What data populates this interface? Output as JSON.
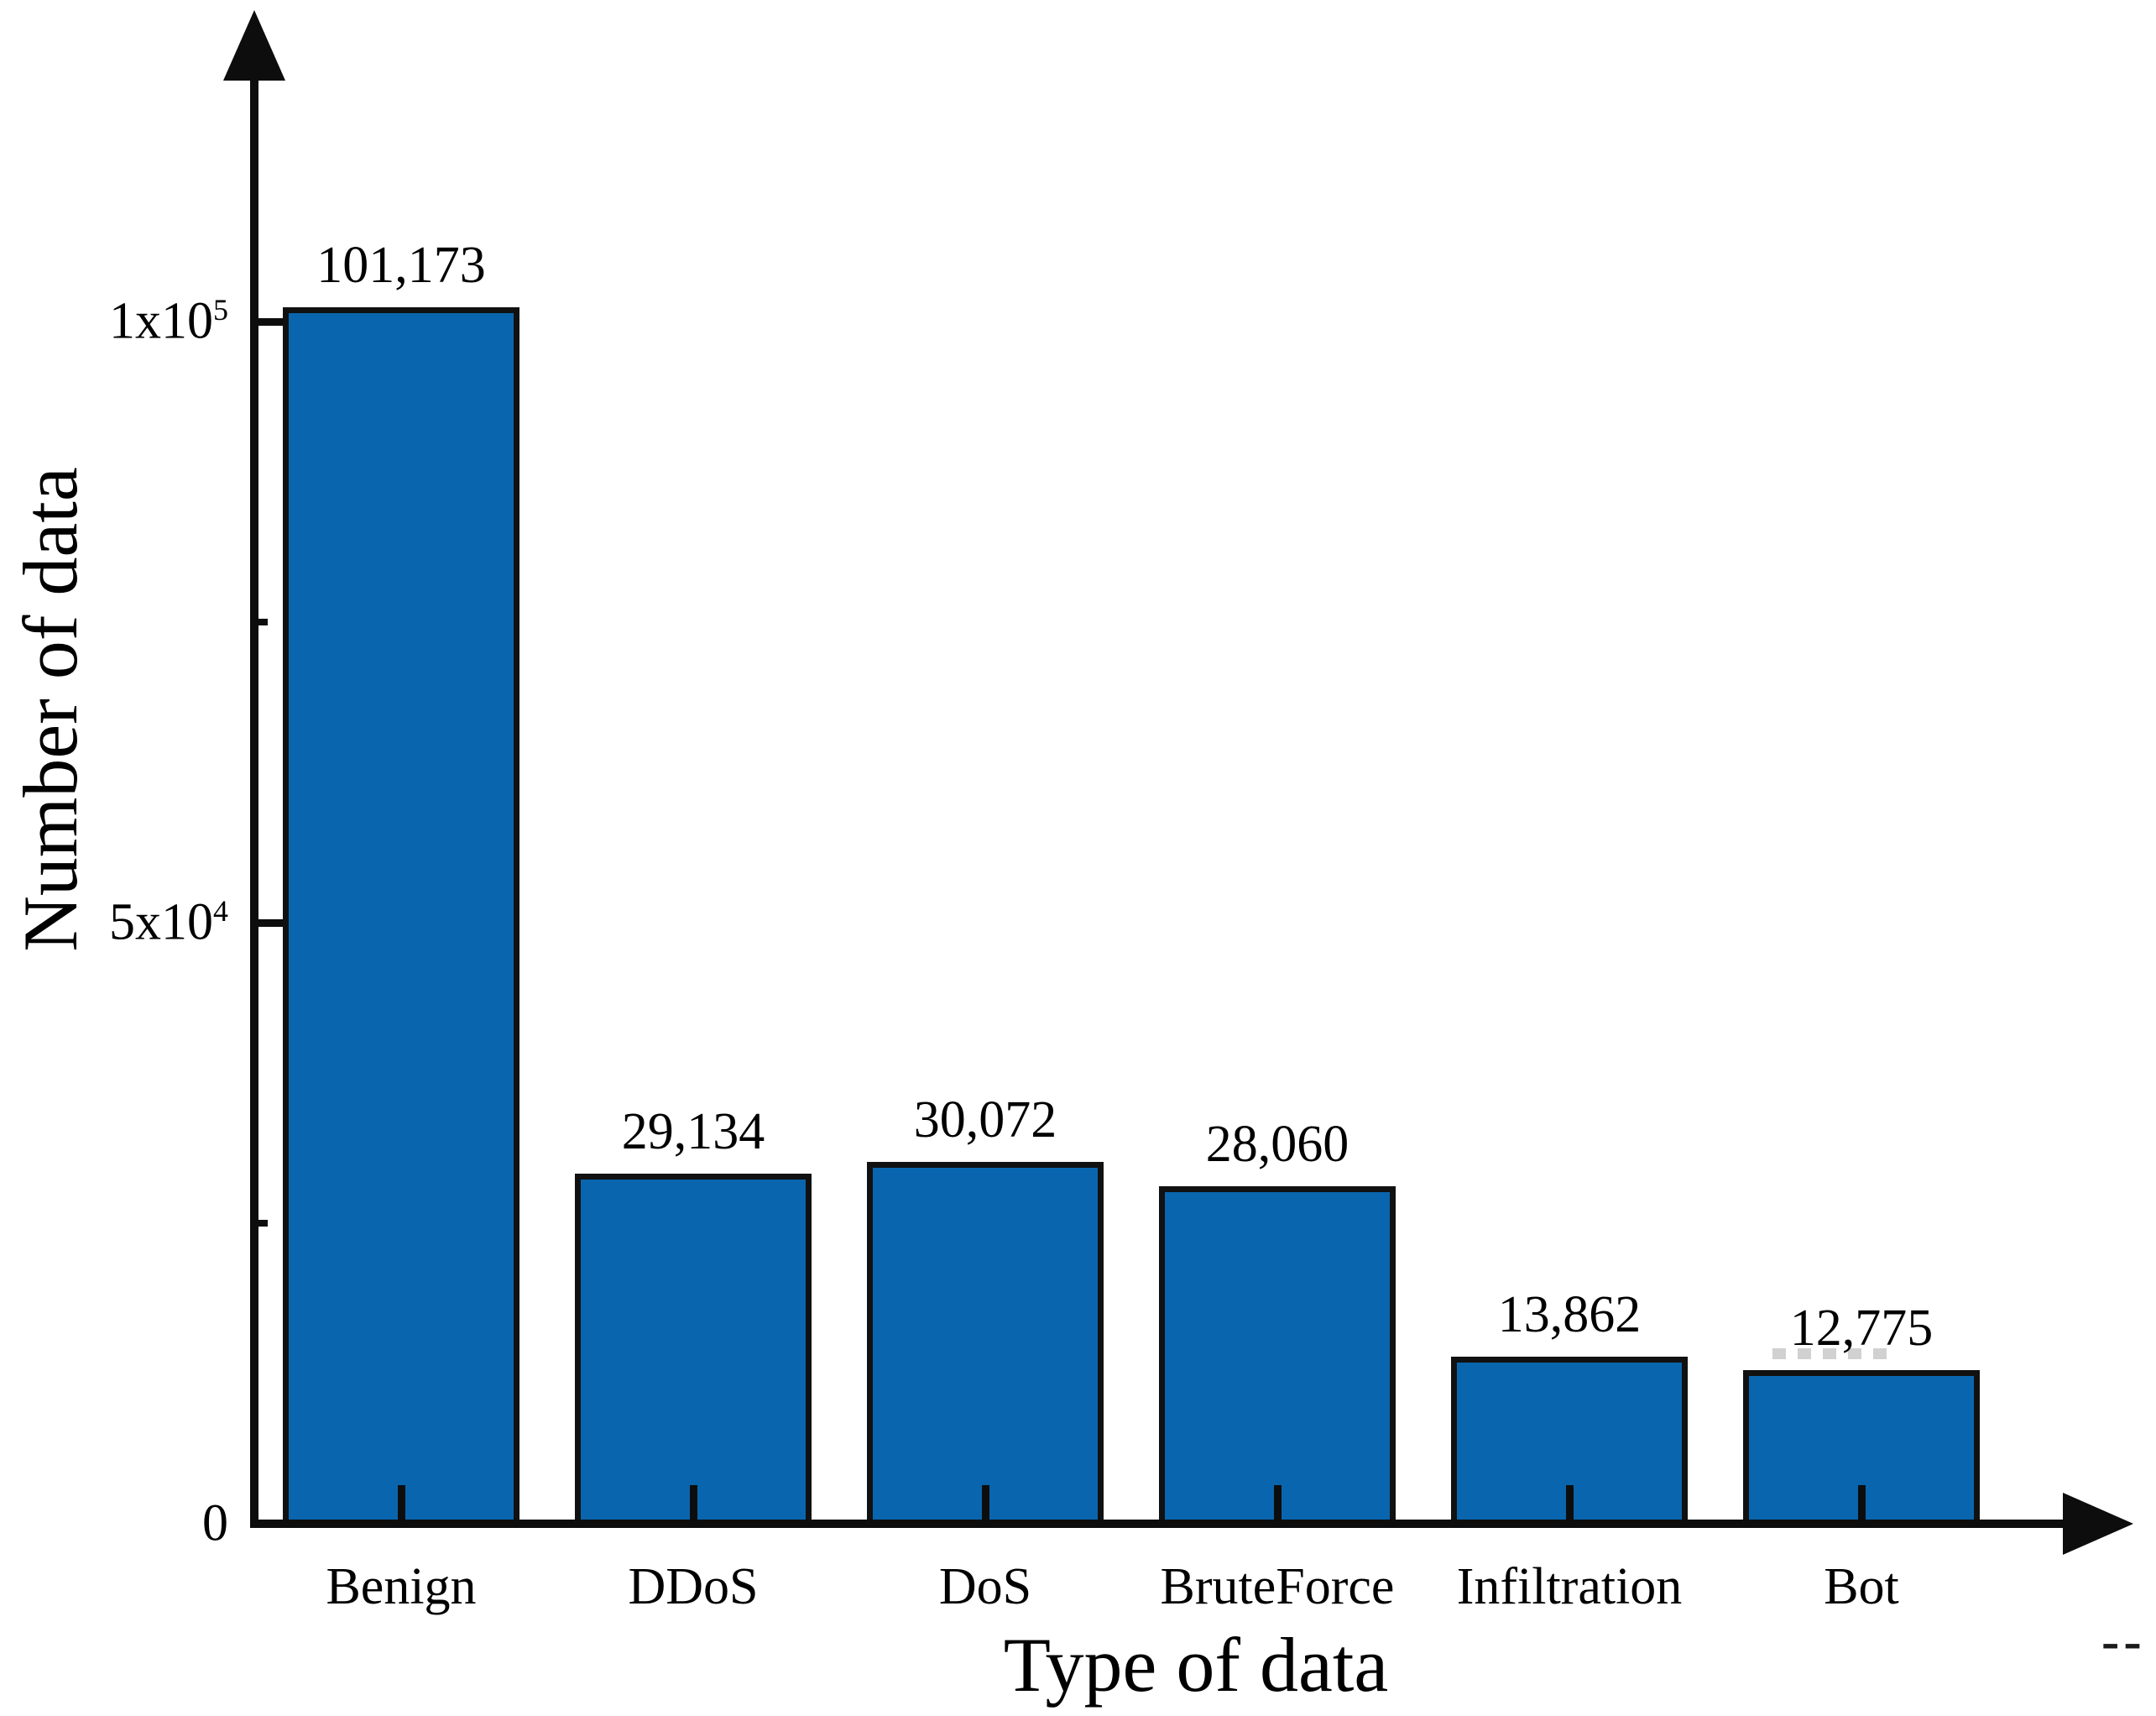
{
  "figure": {
    "background": "#ffffff"
  },
  "chart_data": {
    "type": "bar",
    "title": "",
    "categories": [
      "Benign",
      "DDoS",
      "DoS",
      "BruteForce",
      "Infiltration",
      "Bot"
    ],
    "values": [
      101173,
      29134,
      30072,
      28060,
      13862,
      12775
    ],
    "value_labels": [
      "101,173",
      "29,134",
      "30,072",
      "28,060",
      "13,862",
      "12,775"
    ],
    "xlabel": "Type of data",
    "ylabel": "Number of data",
    "ylim": [
      0,
      125000
    ],
    "yticks": [
      {
        "value": 0,
        "base": "0",
        "exp": ""
      },
      {
        "value": 50000,
        "base": "5x10",
        "exp": "4"
      },
      {
        "value": 100000,
        "base": "1x10",
        "exp": "5"
      }
    ],
    "minor_yticks": [
      25000,
      75000
    ],
    "grid": false,
    "legend_position": "none",
    "bar_fill": "#0966ae",
    "bar_border": "#111111",
    "axis_color": "#0d0d0d",
    "text_color": "#000000",
    "axis_end_label": "--"
  }
}
